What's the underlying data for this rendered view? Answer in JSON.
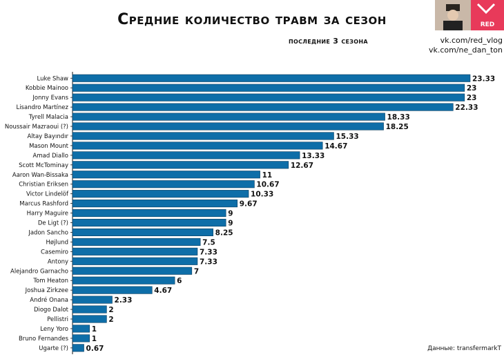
{
  "header": {
    "title": "Средние количество травм за сезон",
    "subtitle": "последние 3 сезона",
    "links": [
      "vk.com/red_vlog",
      "vk.com/ne_dan_ton"
    ],
    "logo_text": "RED"
  },
  "footer": {
    "source": "Данные: transfermarkT"
  },
  "colors": {
    "bar": "#0e6ea8",
    "logo_bg": "#e83a5a"
  },
  "chart_data": {
    "type": "bar",
    "orientation": "horizontal",
    "title": "Средние количество травм за сезон",
    "subtitle": "последние 3 сезона",
    "xlabel": "",
    "ylabel": "",
    "xlim": [
      0,
      23.33
    ],
    "grid": false,
    "categories": [
      "Luke Shaw",
      "Kobbie Mainoo",
      "Jonny Evans",
      "Lisandro Martínez",
      "Tyrell Malacia",
      "Noussair Mazraoui (?)",
      "Altay Bayındır",
      "Mason Mount",
      "Amad Diallo",
      "Scott McTominay",
      "Aaron Wan-Bissaka",
      "Christian Eriksen",
      "Victor Lindelöf",
      "Marcus Rashford",
      "Harry Maguire",
      "De Ligt (?)",
      "Jadon Sancho",
      "Højlund",
      "Casemiro",
      "Antony",
      "Alejandro Garnacho",
      "Tom Heaton",
      "Joshua Zirkzee",
      "André Onana",
      "Diogo Dalot",
      "Pellistri",
      "Leny Yoro",
      "Bruno Fernandes",
      "Ugarte (?)"
    ],
    "values": [
      23.33,
      23,
      23,
      22.33,
      18.33,
      18.25,
      15.33,
      14.67,
      13.33,
      12.67,
      11,
      10.67,
      10.33,
      9.67,
      9,
      9,
      8.25,
      7.5,
      7.33,
      7.33,
      7,
      6,
      4.67,
      2.33,
      2,
      2,
      1,
      1,
      0.67
    ],
    "value_labels": [
      "23.33",
      "23",
      "23",
      "22.33",
      "18.33",
      "18.25",
      "15.33",
      "14.67",
      "13.33",
      "12.67",
      "11",
      "10.67",
      "10.33",
      "9.67",
      "9",
      "9",
      "8.25",
      "7.5",
      "7.33",
      "7.33",
      "7",
      "6",
      "4.67",
      "2.33",
      "2",
      "2",
      "1",
      "1",
      "0.67"
    ]
  }
}
